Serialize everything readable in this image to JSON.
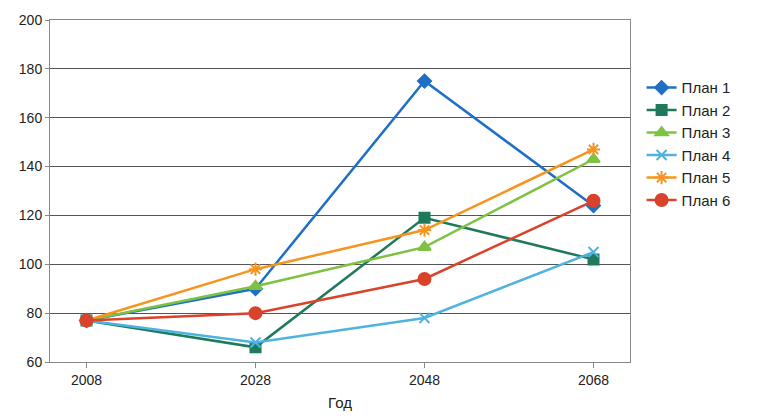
{
  "chart_data": {
    "type": "line",
    "x_label": "Год",
    "categories": [
      "2008",
      "2028",
      "2048",
      "2068"
    ],
    "series": [
      {
        "name": "План 1",
        "color": "#1f6fc5",
        "marker": "diamond",
        "line_style": "solid",
        "values": [
          77,
          90,
          175,
          124
        ]
      },
      {
        "name": "План 2",
        "color": "#1e7a5a",
        "marker": "square",
        "line_style": "solid",
        "values": [
          77,
          66,
          119,
          102
        ]
      },
      {
        "name": "План 3",
        "color": "#7dc242",
        "marker": "triangle",
        "line_style": "solid",
        "values": [
          77,
          91,
          107,
          143
        ]
      },
      {
        "name": "План 4",
        "color": "#4fb3e0",
        "marker": "x",
        "line_style": "solid",
        "values": [
          77,
          68,
          78,
          105
        ]
      },
      {
        "name": "План 5",
        "color": "#f7941d",
        "marker": "asterisk",
        "line_style": "solid",
        "values": [
          77,
          98,
          114,
          147
        ]
      },
      {
        "name": "План 6",
        "color": "#d9432b",
        "marker": "circle",
        "line_style": "solid",
        "values": [
          77,
          80,
          94,
          126
        ]
      }
    ],
    "ylim": [
      60,
      200
    ],
    "yticks": [
      60,
      80,
      100,
      120,
      140,
      160,
      180,
      200
    ],
    "grid": true,
    "legend": "right"
  }
}
